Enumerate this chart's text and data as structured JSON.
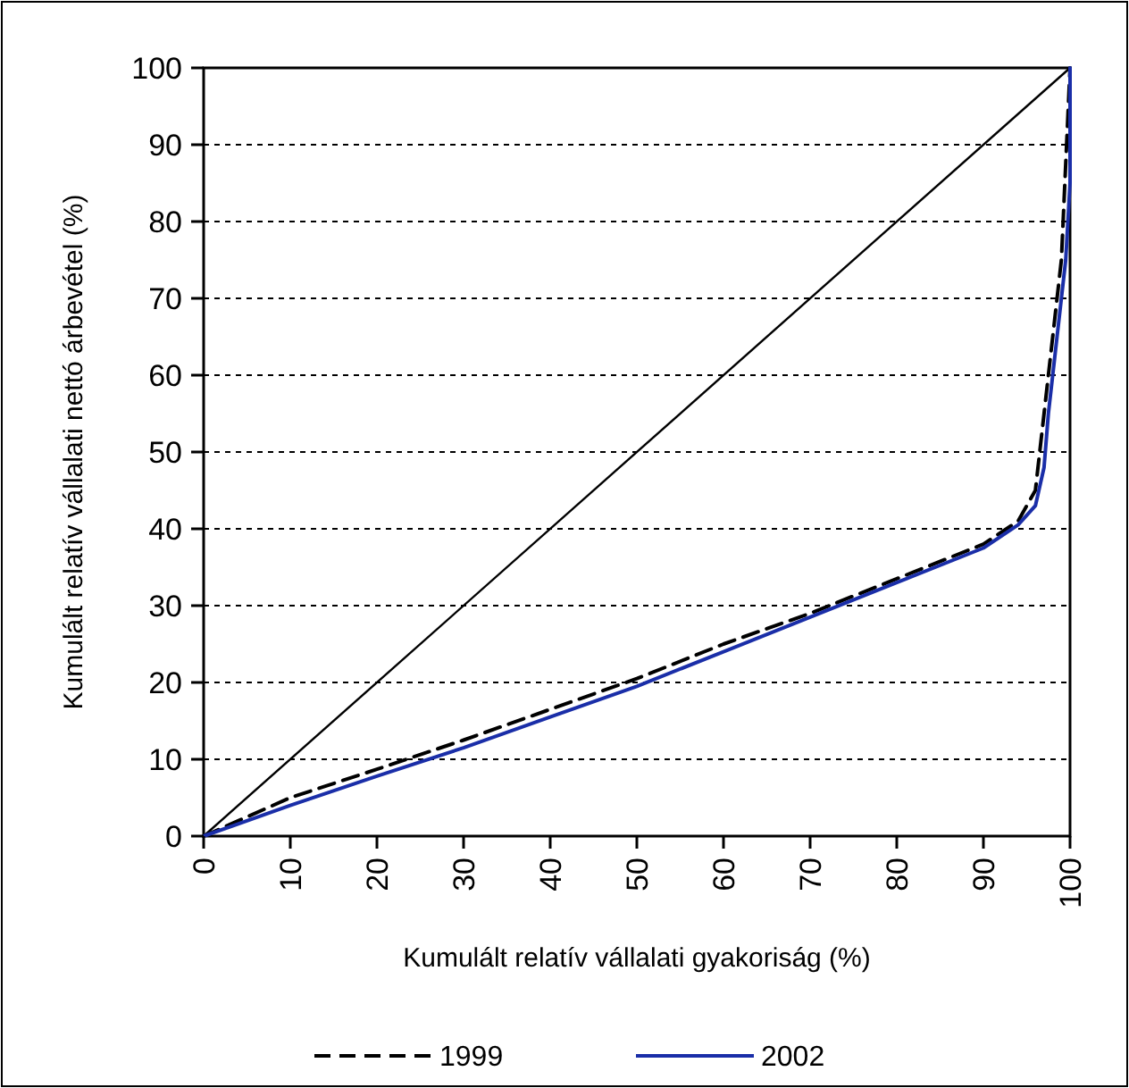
{
  "chart_data": {
    "type": "line",
    "xlabel": "Kumulált relatív vállalati gyakoriság (%)",
    "ylabel": "Kumulált relatív vállalati nettó árbevétel (%)",
    "xlim": [
      0,
      100
    ],
    "xticks": [
      0,
      10,
      20,
      30,
      40,
      50,
      60,
      70,
      80,
      90,
      100
    ],
    "ylim": [
      0,
      100
    ],
    "yticks": [
      0,
      10,
      20,
      30,
      40,
      50,
      60,
      70,
      80,
      90,
      100
    ],
    "grid": "y",
    "legend": "bottom",
    "marker": "none",
    "series": [
      {
        "color": "#000000",
        "line_style": "solid",
        "x": [
          0,
          100
        ],
        "values": [
          0,
          100
        ]
      },
      {
        "name": "1999",
        "color": "#000000",
        "line_style": "dashed",
        "x": [
          0,
          10,
          20,
          30,
          40,
          50,
          60,
          70,
          80,
          90,
          94,
          96,
          97,
          98,
          99,
          100
        ],
        "values": [
          0,
          5,
          8.7,
          12.5,
          16.5,
          20.5,
          25,
          29,
          33.5,
          38,
          41,
          45,
          55,
          65,
          75,
          100
        ]
      },
      {
        "name": "2002",
        "color": "#1a2ea8",
        "line_style": "solid",
        "x": [
          0,
          10,
          20,
          30,
          40,
          50,
          60,
          70,
          80,
          90,
          94,
          96,
          97,
          97.5,
          98.5,
          99.5,
          100,
          100
        ],
        "values": [
          0,
          4,
          7.8,
          11.5,
          15.5,
          19.5,
          24,
          28.5,
          33,
          37.5,
          40.5,
          43,
          48,
          55,
          65,
          75,
          85,
          100
        ]
      }
    ]
  }
}
